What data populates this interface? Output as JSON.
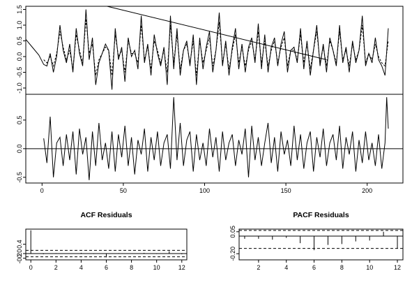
{
  "chart_data": [
    {
      "type": "line",
      "panel": "fitted",
      "title": "",
      "xlim": [
        -10,
        222
      ],
      "ylim": [
        -1.2,
        1.6
      ],
      "x_ticks": [
        0,
        50,
        100,
        150,
        200
      ],
      "y_ticks": [
        1.5,
        1.0,
        0.5,
        0.0,
        -0.5,
        -1.0
      ],
      "y_tick_labels": [
        "1.5",
        "1.0",
        "0.5",
        "0.0",
        "-0.5",
        "-1.0"
      ],
      "series": [
        {
          "style": "solid",
          "x": [
            -10,
            -6,
            -2,
            1,
            3,
            5,
            7,
            9,
            11,
            13,
            15,
            17,
            19,
            21,
            23,
            25,
            27,
            29,
            31,
            33,
            35,
            37,
            39,
            41,
            43,
            45,
            47,
            49,
            51,
            53,
            55,
            57,
            59,
            61,
            63,
            65,
            67,
            69,
            71,
            73,
            75,
            77,
            79,
            81,
            83,
            85,
            87,
            89,
            91,
            93,
            95,
            97,
            99,
            101,
            103,
            105,
            107,
            109,
            111,
            113,
            115,
            117,
            119,
            121,
            123,
            125,
            127,
            129,
            131,
            133,
            135,
            137,
            139,
            141,
            143,
            145,
            147,
            149,
            151,
            153,
            155,
            157,
            159,
            161,
            163,
            165,
            167,
            169,
            171,
            173,
            175,
            177,
            179,
            181,
            183,
            185,
            187,
            189,
            191,
            193,
            195,
            197,
            199,
            201,
            203,
            205,
            207,
            209,
            211,
            213
          ],
          "values": [
            0.55,
            0.3,
            0.05,
            -0.25,
            -0.3,
            0.1,
            -0.5,
            0.0,
            1.0,
            0.2,
            -0.2,
            0.4,
            -0.5,
            0.9,
            0.1,
            -0.3,
            1.5,
            -0.1,
            0.6,
            -0.9,
            -0.2,
            0.1,
            0.4,
            0.2,
            -1.05,
            0.9,
            -0.1,
            0.3,
            -0.8,
            0.6,
            0.0,
            0.2,
            -0.4,
            1.3,
            -0.2,
            0.4,
            -0.6,
            0.7,
            0.1,
            -0.3,
            0.3,
            -0.9,
            1.3,
            -0.4,
            0.9,
            -0.6,
            0.2,
            0.5,
            -0.3,
            0.7,
            -0.9,
            0.6,
            -0.4,
            0.3,
            0.8,
            -0.5,
            0.2,
            1.4,
            -0.3,
            0.5,
            -0.6,
            0.3,
            0.9,
            -0.4,
            0.4,
            -0.5,
            0.3,
            0.6,
            -0.2,
            1.05,
            -0.4,
            0.7,
            -0.5,
            0.3,
            0.6,
            -0.3,
            0.4,
            0.8,
            -0.5,
            0.2,
            0.3,
            -0.2,
            0.9,
            -0.4,
            0.5,
            -0.6,
            0.2,
            1.0,
            -0.3,
            0.4,
            -0.5,
            0.6,
            0.2,
            -0.3,
            1.0,
            -0.2,
            0.3,
            -0.5,
            0.5,
            -0.2,
            0.2,
            1.3,
            -0.3,
            0.1,
            -0.2,
            0.6,
            -0.1,
            -0.3,
            -0.6,
            0.9
          ]
        },
        {
          "style": "dashed",
          "x": [
            1,
            3,
            5,
            7,
            9,
            11,
            13,
            15,
            17,
            19,
            21,
            23,
            25,
            27,
            29,
            31,
            33,
            35,
            37,
            39,
            41,
            43,
            45,
            47,
            49,
            51,
            53,
            55,
            57,
            59,
            61,
            63,
            65,
            67,
            69,
            71,
            73,
            75,
            77,
            79,
            81,
            83,
            85,
            87,
            89,
            91,
            93,
            95,
            97,
            99,
            101,
            103,
            105,
            107,
            109,
            111,
            113,
            115,
            117,
            119,
            121,
            123,
            125,
            127,
            129,
            131,
            133,
            135,
            137,
            139,
            141,
            143,
            145,
            147,
            149,
            151,
            153,
            155,
            157,
            159,
            161,
            163,
            165,
            167,
            169,
            171,
            173,
            175,
            177,
            179,
            181,
            183,
            185,
            187,
            189,
            191,
            193,
            195,
            197,
            199,
            201,
            203,
            205,
            207,
            209,
            211,
            213
          ],
          "values": [
            -0.1,
            -0.2,
            0.0,
            -0.3,
            0.1,
            0.8,
            0.3,
            -0.1,
            0.2,
            -0.4,
            0.7,
            0.2,
            -0.2,
            1.2,
            0.1,
            0.4,
            -0.6,
            -0.1,
            0.1,
            0.3,
            0.2,
            -0.6,
            0.7,
            0.0,
            0.2,
            -0.5,
            0.5,
            0.1,
            0.1,
            -0.2,
            1.0,
            -0.1,
            0.3,
            -0.4,
            0.5,
            0.2,
            -0.2,
            0.2,
            -0.5,
            1.0,
            -0.2,
            0.7,
            -0.4,
            0.2,
            0.4,
            -0.2,
            0.5,
            -0.6,
            0.5,
            -0.2,
            0.2,
            0.6,
            -0.3,
            0.2,
            1.1,
            -0.2,
            0.4,
            -0.4,
            0.2,
            0.7,
            -0.2,
            0.3,
            -0.3,
            0.2,
            0.5,
            -0.1,
            0.8,
            -0.2,
            0.5,
            -0.3,
            0.2,
            0.5,
            -0.2,
            0.3,
            0.6,
            -0.3,
            0.2,
            0.2,
            -0.1,
            0.7,
            -0.2,
            0.4,
            -0.4,
            0.2,
            0.8,
            -0.2,
            0.3,
            -0.3,
            0.5,
            0.2,
            -0.2,
            0.8,
            -0.1,
            0.2,
            -0.3,
            0.4,
            -0.1,
            0.2,
            1.0,
            -0.2,
            0.1,
            -0.1,
            0.4,
            0.0,
            -0.2,
            -0.3,
            0.5
          ]
        },
        {
          "style": "solid",
          "x": [
            40,
            175
          ],
          "values": [
            1.6,
            -0.1
          ]
        }
      ]
    },
    {
      "type": "line",
      "panel": "residuals",
      "title": "",
      "xlim": [
        -10,
        222
      ],
      "ylim": [
        -0.6,
        0.95
      ],
      "x_ticks": [
        0,
        50,
        100,
        150,
        200
      ],
      "x_tick_labels": [
        "0",
        "50",
        "100",
        "150",
        "200"
      ],
      "y_ticks": [
        0.5,
        0.0,
        -0.5
      ],
      "y_tick_labels": [
        "0.5",
        "0.0",
        "-0.5"
      ],
      "zero_line": 0,
      "series": [
        {
          "style": "solid",
          "x": [
            1,
            3,
            5,
            7,
            9,
            11,
            13,
            15,
            17,
            19,
            21,
            23,
            25,
            27,
            29,
            31,
            33,
            35,
            37,
            39,
            41,
            43,
            45,
            47,
            49,
            51,
            53,
            55,
            57,
            59,
            61,
            63,
            65,
            67,
            69,
            71,
            73,
            75,
            77,
            79,
            81,
            83,
            85,
            87,
            89,
            91,
            93,
            95,
            97,
            99,
            101,
            103,
            105,
            107,
            109,
            111,
            113,
            115,
            117,
            119,
            121,
            123,
            125,
            127,
            129,
            131,
            133,
            135,
            137,
            139,
            141,
            143,
            145,
            147,
            149,
            151,
            153,
            155,
            157,
            159,
            161,
            163,
            165,
            167,
            169,
            171,
            173,
            175,
            177,
            179,
            181,
            183,
            185,
            187,
            189,
            191,
            193,
            195,
            197,
            199,
            201,
            203,
            205,
            207,
            209,
            211,
            212,
            213
          ],
          "values": [
            0.18,
            -0.25,
            0.56,
            -0.5,
            0.1,
            0.2,
            -0.3,
            0.25,
            -0.2,
            0.3,
            -0.45,
            0.35,
            -0.1,
            0.2,
            -0.55,
            0.3,
            -0.3,
            0.45,
            -0.2,
            0.1,
            -0.35,
            0.3,
            -0.4,
            0.25,
            -0.15,
            0.4,
            -0.3,
            0.2,
            -0.45,
            0.15,
            -0.1,
            0.35,
            -0.4,
            0.2,
            -0.2,
            0.3,
            -0.3,
            0.1,
            0.25,
            -0.35,
            0.9,
            -0.2,
            0.45,
            -0.3,
            0.15,
            0.3,
            -0.4,
            0.25,
            -0.2,
            0.1,
            -0.3,
            0.35,
            -0.15,
            0.2,
            -0.4,
            0.3,
            -0.2,
            0.1,
            0.25,
            -0.3,
            0.15,
            -0.1,
            0.35,
            -0.5,
            0.4,
            -0.2,
            0.2,
            -0.3,
            0.1,
            0.45,
            -0.25,
            0.2,
            -0.4,
            0.3,
            -0.1,
            0.15,
            -0.3,
            0.4,
            -0.2,
            0.25,
            -0.35,
            0.1,
            0.3,
            -0.4,
            0.2,
            -0.15,
            0.35,
            -0.3,
            0.1,
            0.25,
            -0.2,
            0.4,
            -0.35,
            0.2,
            -0.1,
            0.3,
            -0.4,
            0.15,
            -0.25,
            0.3,
            -0.2,
            0.1,
            -0.3,
            0.25,
            -0.35,
            0.1,
            0.9,
            0.35
          ]
        }
      ]
    },
    {
      "type": "bar",
      "panel": "acf",
      "title": "ACF Residuals",
      "xlim": [
        -0.4,
        12.4
      ],
      "ylim": [
        -0.27,
        1.05
      ],
      "x_ticks": [
        0,
        2,
        4,
        6,
        8,
        10,
        12
      ],
      "x_tick_labels": [
        "0",
        "2",
        "4",
        "6",
        "8",
        "10",
        "12"
      ],
      "y_ticks": [
        0.4,
        0.0,
        -0.2
      ],
      "y_tick_labels": [
        "0.4",
        "0.0",
        "-0.2"
      ],
      "confidence_band": [
        0.14,
        -0.14
      ],
      "lags": [
        0,
        1,
        2,
        3,
        4,
        5,
        6,
        7,
        8,
        9,
        10,
        11,
        12
      ],
      "values": [
        1.0,
        -0.03,
        0.02,
        -0.01,
        0.03,
        -0.02,
        -0.16,
        0.02,
        -0.01,
        0.03,
        -0.02,
        0.1,
        -0.03
      ]
    },
    {
      "type": "bar",
      "panel": "pacf",
      "title": "PACF Residuals",
      "xlim": [
        0.6,
        12.4
      ],
      "ylim": [
        -0.27,
        0.08
      ],
      "x_ticks": [
        2,
        4,
        6,
        8,
        10,
        12
      ],
      "x_tick_labels": [
        "2",
        "4",
        "6",
        "8",
        "10",
        "12"
      ],
      "y_ticks": [
        0.05,
        -0.2
      ],
      "y_tick_labels": [
        "0.05",
        "-0.20"
      ],
      "confidence_band": [
        0.065,
        -0.14
      ],
      "lags": [
        1,
        2,
        3,
        4,
        5,
        6,
        7,
        8,
        9,
        10,
        11,
        12
      ],
      "values": [
        -0.03,
        -0.03,
        -0.04,
        -0.02,
        -0.08,
        -0.16,
        -0.1,
        -0.09,
        -0.06,
        -0.05,
        0.05,
        -0.14
      ]
    }
  ]
}
